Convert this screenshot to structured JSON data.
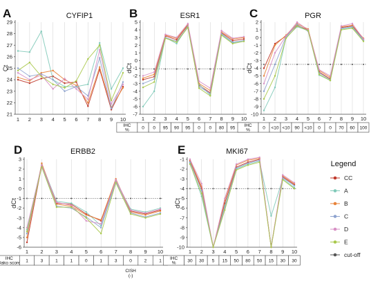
{
  "legend": {
    "title": "Legend",
    "items": [
      {
        "name": "CC",
        "color": "#c0392b"
      },
      {
        "name": "A",
        "color": "#7fc9b8"
      },
      {
        "name": "B",
        "color": "#e8833a"
      },
      {
        "name": "C",
        "color": "#8ea3cf"
      },
      {
        "name": "D",
        "color": "#d78fc4"
      },
      {
        "name": "E",
        "color": "#a8c84a"
      },
      {
        "name": "cut-off",
        "color": "#555555"
      }
    ]
  },
  "chart_data": [
    {
      "type": "line",
      "letter": "A",
      "title": "CYFIP1",
      "ylabel": "Ct",
      "x": [
        1,
        2,
        3,
        4,
        5,
        6,
        7,
        8,
        9,
        10
      ],
      "ylim": [
        21,
        29
      ],
      "yticks": [
        21,
        22,
        23,
        24,
        25,
        26,
        27,
        28,
        29
      ],
      "series": [
        {
          "name": "CC",
          "values": [
            24.0,
            23.7,
            24.1,
            24.3,
            23.7,
            23.8,
            21.7,
            24.9,
            21.4,
            23.4
          ]
        },
        {
          "name": "A",
          "values": [
            26.5,
            26.4,
            28.2,
            24.0,
            23.4,
            23.4,
            23.6,
            27.2,
            23.2,
            25.0
          ]
        },
        {
          "name": "B",
          "values": [
            24.2,
            23.9,
            24.6,
            24.8,
            24.0,
            23.5,
            22.0,
            25.1,
            21.6,
            23.3
          ]
        },
        {
          "name": "C",
          "values": [
            25.0,
            24.3,
            24.5,
            24.0,
            23.0,
            23.4,
            22.6,
            25.9,
            21.5,
            23.8
          ]
        },
        {
          "name": "D",
          "values": [
            24.6,
            24.0,
            24.4,
            23.2,
            24.1,
            23.2,
            22.3,
            26.6,
            21.9,
            23.6
          ]
        },
        {
          "name": "E",
          "values": [
            24.8,
            25.5,
            24.3,
            23.6,
            23.3,
            23.9,
            25.8,
            27.0,
            22.2,
            24.6
          ]
        }
      ]
    },
    {
      "type": "line",
      "letter": "B",
      "title": "ESR1",
      "ylabel": "dCt",
      "x": [
        1,
        2,
        3,
        4,
        5,
        6,
        7,
        8,
        9,
        10
      ],
      "ylim": [
        -7,
        5
      ],
      "yticks": [
        -7,
        -6,
        -5,
        -4,
        -3,
        -2,
        -1,
        0,
        1,
        2,
        3,
        4,
        5
      ],
      "cutoff": -1.1,
      "series": [
        {
          "name": "CC",
          "values": [
            -2.5,
            -2.1,
            3.2,
            2.7,
            4.6,
            -3.2,
            -4.2,
            3.6,
            2.6,
            2.8
          ]
        },
        {
          "name": "A",
          "values": [
            -6.0,
            -4.0,
            3.0,
            2.2,
            4.5,
            -3.1,
            -4.5,
            3.4,
            2.3,
            2.6
          ]
        },
        {
          "name": "B",
          "values": [
            -2.3,
            -1.8,
            3.3,
            2.9,
            4.7,
            -3.0,
            -3.9,
            3.7,
            2.8,
            3.0
          ]
        },
        {
          "name": "C",
          "values": [
            -3.0,
            -2.4,
            3.0,
            2.5,
            4.4,
            -3.4,
            -4.3,
            3.5,
            2.4,
            2.6
          ]
        },
        {
          "name": "D",
          "values": [
            -2.0,
            -1.5,
            3.4,
            3.0,
            4.8,
            -2.7,
            -3.6,
            3.9,
            2.9,
            3.1
          ]
        },
        {
          "name": "E",
          "values": [
            -3.5,
            -2.8,
            2.9,
            2.4,
            4.3,
            -3.6,
            -4.6,
            3.3,
            2.2,
            2.5
          ]
        }
      ],
      "table": {
        "header": "IHC\n%",
        "values": [
          "0",
          "0",
          "95",
          "90",
          "95",
          "0",
          "0",
          "80",
          "95",
          "95"
        ]
      }
    },
    {
      "type": "line",
      "letter": "C",
      "title": "PGR",
      "ylabel": "dCt",
      "x": [
        1,
        2,
        3,
        4,
        5,
        6,
        7,
        8,
        9,
        10
      ],
      "ylim": [
        -10,
        2
      ],
      "yticks": [
        -10,
        -9,
        -8,
        -7,
        -6,
        -5,
        -4,
        -3,
        -2,
        -1,
        0,
        1,
        2
      ],
      "cutoff": -3.5,
      "series": [
        {
          "name": "CC",
          "values": [
            -4.0,
            -0.8,
            0.2,
            1.6,
            1.0,
            -4.5,
            -5.4,
            1.3,
            1.5,
            -0.2
          ]
        },
        {
          "name": "A",
          "values": [
            -9.5,
            -6.5,
            0.0,
            1.4,
            0.9,
            -4.9,
            -5.6,
            1.1,
            1.3,
            -0.4
          ]
        },
        {
          "name": "B",
          "values": [
            -5.0,
            -1.0,
            0.3,
            1.8,
            1.1,
            -4.3,
            -5.2,
            1.4,
            1.6,
            -0.1
          ]
        },
        {
          "name": "C",
          "values": [
            -7.0,
            -3.5,
            0.1,
            1.7,
            0.8,
            -4.6,
            -5.5,
            1.2,
            1.4,
            -0.3
          ]
        },
        {
          "name": "D",
          "values": [
            -6.0,
            -2.0,
            0.2,
            2.0,
            1.0,
            -4.2,
            -5.0,
            1.5,
            1.8,
            -0.2
          ]
        },
        {
          "name": "E",
          "values": [
            -8.0,
            -5.0,
            -0.1,
            1.5,
            0.9,
            -4.8,
            -5.6,
            1.0,
            1.2,
            -0.5
          ]
        }
      ],
      "table": {
        "header": "IHC\n%",
        "values": [
          "0",
          "<10",
          "<10",
          "90",
          "<10",
          "0",
          "0",
          "70",
          "60",
          "100"
        ]
      }
    },
    {
      "type": "line",
      "letter": "D",
      "title": "ERBB2",
      "ylabel": "dCt",
      "x": [
        1,
        2,
        3,
        4,
        5,
        6,
        7,
        8,
        9,
        10
      ],
      "ylim": [
        -6,
        3
      ],
      "yticks": [
        -6,
        -5,
        -4,
        -3,
        -2,
        -1,
        0,
        1,
        2,
        3
      ],
      "cutoff": -1.0,
      "series": [
        {
          "name": "CC",
          "values": [
            -5.5,
            2.4,
            -1.5,
            -1.6,
            -2.6,
            -3.3,
            0.9,
            -2.3,
            -2.6,
            -2.2
          ]
        },
        {
          "name": "A",
          "values": [
            -4.2,
            2.5,
            -1.3,
            -1.5,
            -2.4,
            -3.8,
            0.8,
            -2.1,
            -2.4,
            -2.0
          ]
        },
        {
          "name": "B",
          "values": [
            -5.0,
            2.6,
            -1.6,
            -1.8,
            -2.7,
            -3.2,
            1.0,
            -2.4,
            -2.7,
            -2.3
          ]
        },
        {
          "name": "C",
          "values": [
            -4.6,
            2.3,
            -1.8,
            -2.0,
            -2.9,
            -4.0,
            0.7,
            -2.5,
            -2.9,
            -2.5
          ]
        },
        {
          "name": "D",
          "values": [
            -4.0,
            2.4,
            -1.4,
            -1.7,
            -3.3,
            -3.6,
            0.9,
            -2.2,
            -2.5,
            -2.1
          ]
        },
        {
          "name": "E",
          "values": [
            -4.4,
            2.2,
            -1.9,
            -1.9,
            -3.0,
            -4.6,
            0.6,
            -2.6,
            -3.0,
            -2.6
          ]
        }
      ],
      "table": {
        "header": "IHC\nDako score",
        "values": [
          "1",
          "3",
          "1",
          "1",
          "0",
          "1",
          "3",
          "0",
          "2",
          "1"
        ]
      },
      "note": "CISH\n(-)"
    },
    {
      "type": "line",
      "letter": "E",
      "title": "MKI67",
      "ylabel": "dCt",
      "x": [
        1,
        2,
        3,
        4,
        5,
        6,
        7,
        8,
        9,
        10
      ],
      "ylim": [
        -10,
        -1
      ],
      "yticks": [
        -10,
        -9,
        -8,
        -7,
        -6,
        -5,
        -4,
        -3,
        -2,
        -1
      ],
      "cutoff": -4.0,
      "series": [
        {
          "name": "CC",
          "values": [
            -1.2,
            -4.0,
            -10.0,
            -5.5,
            -1.8,
            -1.3,
            -1.0,
            -10.0,
            -2.8,
            -3.6
          ]
        },
        {
          "name": "A",
          "values": [
            -1.4,
            -4.8,
            -10.0,
            -5.8,
            -2.0,
            -1.5,
            -1.2,
            -6.8,
            -3.0,
            -3.9
          ]
        },
        {
          "name": "B",
          "values": [
            -1.1,
            -3.8,
            -10.0,
            -5.2,
            -1.6,
            -1.1,
            -0.9,
            -10.0,
            -2.7,
            -3.5
          ]
        },
        {
          "name": "C",
          "values": [
            -1.3,
            -4.2,
            -10.0,
            -6.0,
            -1.9,
            -1.4,
            -1.1,
            -10.0,
            -2.9,
            -3.7
          ]
        },
        {
          "name": "D",
          "values": [
            -1.0,
            -3.5,
            -10.0,
            -5.0,
            -1.5,
            -1.0,
            -0.8,
            -10.0,
            -2.6,
            -3.4
          ]
        },
        {
          "name": "E",
          "values": [
            -1.5,
            -4.5,
            -10.0,
            -6.2,
            -2.1,
            -1.6,
            -1.3,
            -10.0,
            -3.1,
            -4.0
          ]
        }
      ],
      "table": {
        "header": "IHC\n%",
        "values": [
          "30",
          "30",
          "5",
          "15",
          "50",
          "80",
          "50",
          "15",
          "30",
          "30"
        ]
      }
    }
  ]
}
